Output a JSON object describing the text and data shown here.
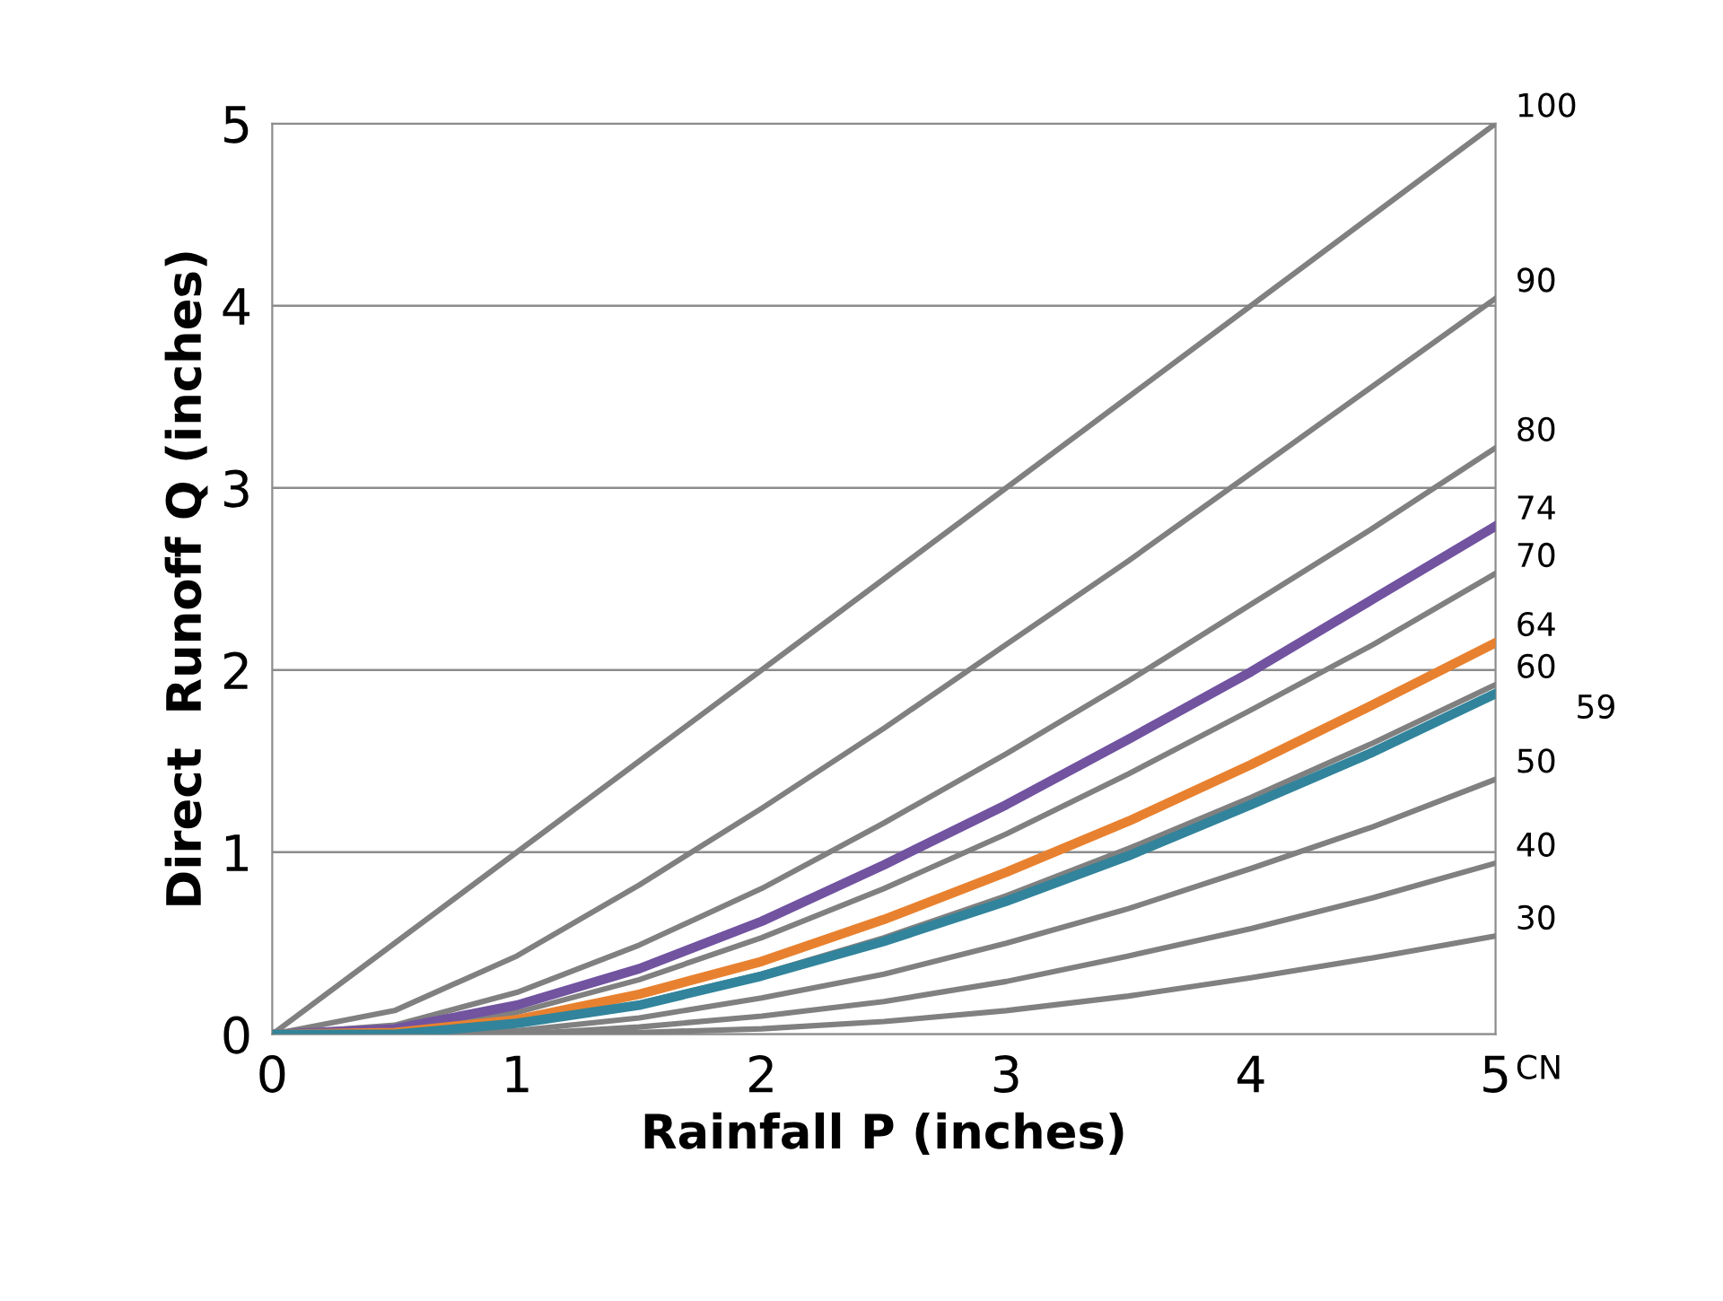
{
  "chart_data": {
    "type": "line",
    "xlabel": "Rainfall P (inches)",
    "ylabel": "Direct  Runoff Q (inches)",
    "x": [
      0,
      0.5,
      1,
      1.5,
      2,
      2.5,
      3,
      3.5,
      4,
      4.5,
      5
    ],
    "series": [
      {
        "name": "100",
        "color": "#808080",
        "values": [
          0,
          0.5,
          1,
          1.5,
          2,
          2.5,
          3,
          3.5,
          4,
          4.5,
          5
        ]
      },
      {
        "name": "90",
        "color": "#808080",
        "values": [
          0,
          0.13,
          0.43,
          0.82,
          1.24,
          1.68,
          2.14,
          2.6,
          3.08,
          3.56,
          4.04
        ]
      },
      {
        "name": "80",
        "color": "#808080",
        "values": [
          0,
          0.05,
          0.23,
          0.49,
          0.8,
          1.16,
          1.54,
          1.94,
          2.36,
          2.78,
          3.22
        ]
      },
      {
        "name": "74",
        "color": "#7153a0",
        "values": [
          0,
          0.03,
          0.16,
          0.36,
          0.62,
          0.93,
          1.26,
          1.62,
          1.99,
          2.39,
          2.79
        ]
      },
      {
        "name": "70",
        "color": "#808080",
        "values": [
          0,
          0.02,
          0.12,
          0.3,
          0.53,
          0.8,
          1.1,
          1.43,
          1.78,
          2.14,
          2.53
        ]
      },
      {
        "name": "64",
        "color": "#e8812f",
        "values": [
          0,
          0.01,
          0.08,
          0.22,
          0.4,
          0.63,
          0.89,
          1.17,
          1.48,
          1.81,
          2.15
        ]
      },
      {
        "name": "60",
        "color": "#808080",
        "values": [
          0,
          0,
          0.06,
          0.17,
          0.33,
          0.53,
          0.76,
          1.02,
          1.3,
          1.6,
          1.92
        ]
      },
      {
        "name": "59",
        "color": "#31849b",
        "values": [
          0,
          0,
          0.06,
          0.16,
          0.32,
          0.51,
          0.73,
          0.98,
          1.26,
          1.55,
          1.87
        ]
      },
      {
        "name": "50",
        "color": "#808080",
        "values": [
          0,
          0,
          0.02,
          0.09,
          0.2,
          0.33,
          0.5,
          0.69,
          0.91,
          1.14,
          1.4
        ]
      },
      {
        "name": "40",
        "color": "#808080",
        "values": [
          0,
          0,
          0,
          0.04,
          0.1,
          0.18,
          0.29,
          0.43,
          0.58,
          0.75,
          0.94
        ]
      },
      {
        "name": "30",
        "color": "#808080",
        "values": [
          0,
          0,
          0,
          0.01,
          0.03,
          0.07,
          0.13,
          0.21,
          0.31,
          0.42,
          0.54
        ]
      }
    ],
    "annotations": [
      "CN"
    ],
    "xlim": [
      0,
      5
    ],
    "ylim": [
      0,
      5
    ],
    "xticks": [
      0,
      1,
      2,
      3,
      4,
      5
    ],
    "yticks": [
      0,
      1,
      2,
      3,
      4,
      5
    ],
    "grid": "y",
    "legend": false,
    "marker": "none",
    "line_style": "solid"
  }
}
